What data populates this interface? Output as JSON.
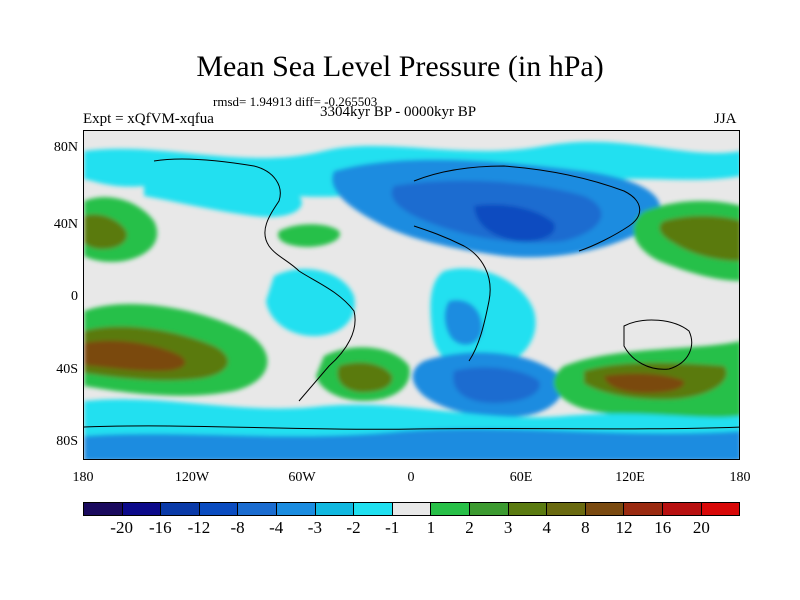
{
  "title": "Mean Sea Level Pressure (in hPa)",
  "stats": "rmsd= 1.94913 diff= -0.265503",
  "experiment": "Expt = xQfVM-xqfua",
  "period": "3304kyr BP - 0000kyr BP",
  "season": "JJA",
  "y_axis_labels": [
    "80N",
    "40N",
    "0",
    "40S",
    "80S"
  ],
  "x_axis_labels": [
    "180",
    "120W",
    "60W",
    "0",
    "60E",
    "120E",
    "180"
  ],
  "colorbar": {
    "labels": [
      "-20",
      "-16",
      "-12",
      "-8",
      "-4",
      "-3",
      "-2",
      "-1",
      "1",
      "2",
      "3",
      "4",
      "8",
      "12",
      "16",
      "20"
    ],
    "colors": [
      "#1a0a5e",
      "#0c0a8a",
      "#0a3aa8",
      "#0a4cc0",
      "#1a6cd0",
      "#1a8ce0",
      "#10b8e0",
      "#20e0f0",
      "#e8e8e8",
      "#28c048",
      "#3c9a30",
      "#5a7a10",
      "#6a6a10",
      "#7a4a10",
      "#9a2a10",
      "#b81010",
      "#d80808"
    ]
  }
}
